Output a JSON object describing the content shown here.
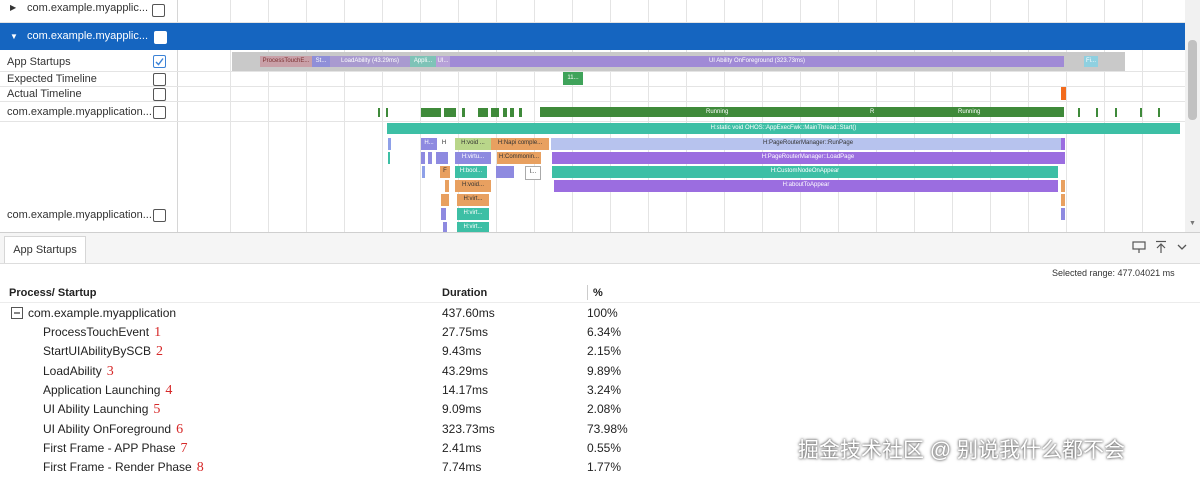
{
  "timeline": {
    "rows": [
      {
        "label": "com.example.myapplic...",
        "expanded": false
      },
      {
        "label": "com.example.myapplic...",
        "expanded": true,
        "selected": true
      },
      {
        "label": "App Startups",
        "checked": true
      },
      {
        "label": "Expected Timeline",
        "checked": false
      },
      {
        "label": "Actual Timeline",
        "checked": false
      },
      {
        "label": "com.example.myapplication...",
        "checked": false
      },
      {
        "label": "com.example.myapplication...",
        "checked": false
      }
    ],
    "startup_bars": [
      {
        "label": "ProcessTouchE...",
        "color": "#c9a0a8"
      },
      {
        "label": "St...",
        "color": "#8f8fd8"
      },
      {
        "label": "LoadAbility (43.29ms)",
        "color": "#a99ad0"
      },
      {
        "label": "Appli...",
        "color": "#7ec3b7"
      },
      {
        "label": "UI...",
        "color": "#b6a0d8"
      },
      {
        "label": "UI Ability OnForeground (323.73ms)",
        "color": "#a08ad6"
      },
      {
        "label": "Fi...",
        "color": "#8fd0e0"
      }
    ],
    "expected_bar_label": "11...",
    "running_labels": [
      "Running",
      "R",
      "Running"
    ],
    "main_thread_label": "H:static void OHOS::AppExecFwk::MainThread::Start()",
    "call_labels": {
      "run_page": "H:PageRouterManager::RunPage",
      "load_page": "H:PageRouterManager::LoadPage",
      "custom_node": "H:CustomNodeOnAppear",
      "about_to_appear": "H:aboutToAppear",
      "void_1": "H:void ...",
      "napi": "H:Napi comple...",
      "virtu": "H:virtu...",
      "common": "H:Commonin...",
      "bool": "H:bool...",
      "void_2": "H:void...",
      "virt_1": "H:virt...",
      "virt_2": "H:virt...",
      "virt_3": "H:virt...",
      "h_a": "H...",
      "h_b": "H",
      "f": "F",
      "l": "l..."
    }
  },
  "panel": {
    "tab_label": "App Startups",
    "selected_range": "Selected range: 477.04021 ms",
    "columns": {
      "process": "Process/ Startup",
      "duration": "Duration",
      "percent": "%"
    },
    "root": {
      "name": "com.example.myapplication",
      "duration": "437.60ms",
      "percent": "100%"
    },
    "rows": [
      {
        "name": "ProcessTouchEvent",
        "marker": "1",
        "duration": "27.75ms",
        "percent": "6.34%"
      },
      {
        "name": "StartUIAbilityBySCB",
        "marker": "2",
        "duration": "9.43ms",
        "percent": "2.15%"
      },
      {
        "name": "LoadAbility",
        "marker": "3",
        "duration": "43.29ms",
        "percent": "9.89%"
      },
      {
        "name": "Application Launching",
        "marker": "4",
        "duration": "14.17ms",
        "percent": "3.24%"
      },
      {
        "name": "UI Ability Launching",
        "marker": "5",
        "duration": "9.09ms",
        "percent": "2.08%"
      },
      {
        "name": "UI Ability OnForeground",
        "marker": "6",
        "duration": "323.73ms",
        "percent": "73.98%"
      },
      {
        "name": "First Frame - APP Phase",
        "marker": "7",
        "duration": "2.41ms",
        "percent": "0.55%"
      },
      {
        "name": "First Frame - Render Phase",
        "marker": "8",
        "duration": "7.74ms",
        "percent": "1.77%"
      }
    ]
  },
  "watermark": "掘金技术社区 @ 别说我什么都不会",
  "colors": {
    "selected_row": "#1565c0",
    "running": "#3f8a3a",
    "teal": "#3dbfa5",
    "purple": "#9b6de0",
    "lavender": "#b7c3ee",
    "orange": "#e98a4a"
  }
}
